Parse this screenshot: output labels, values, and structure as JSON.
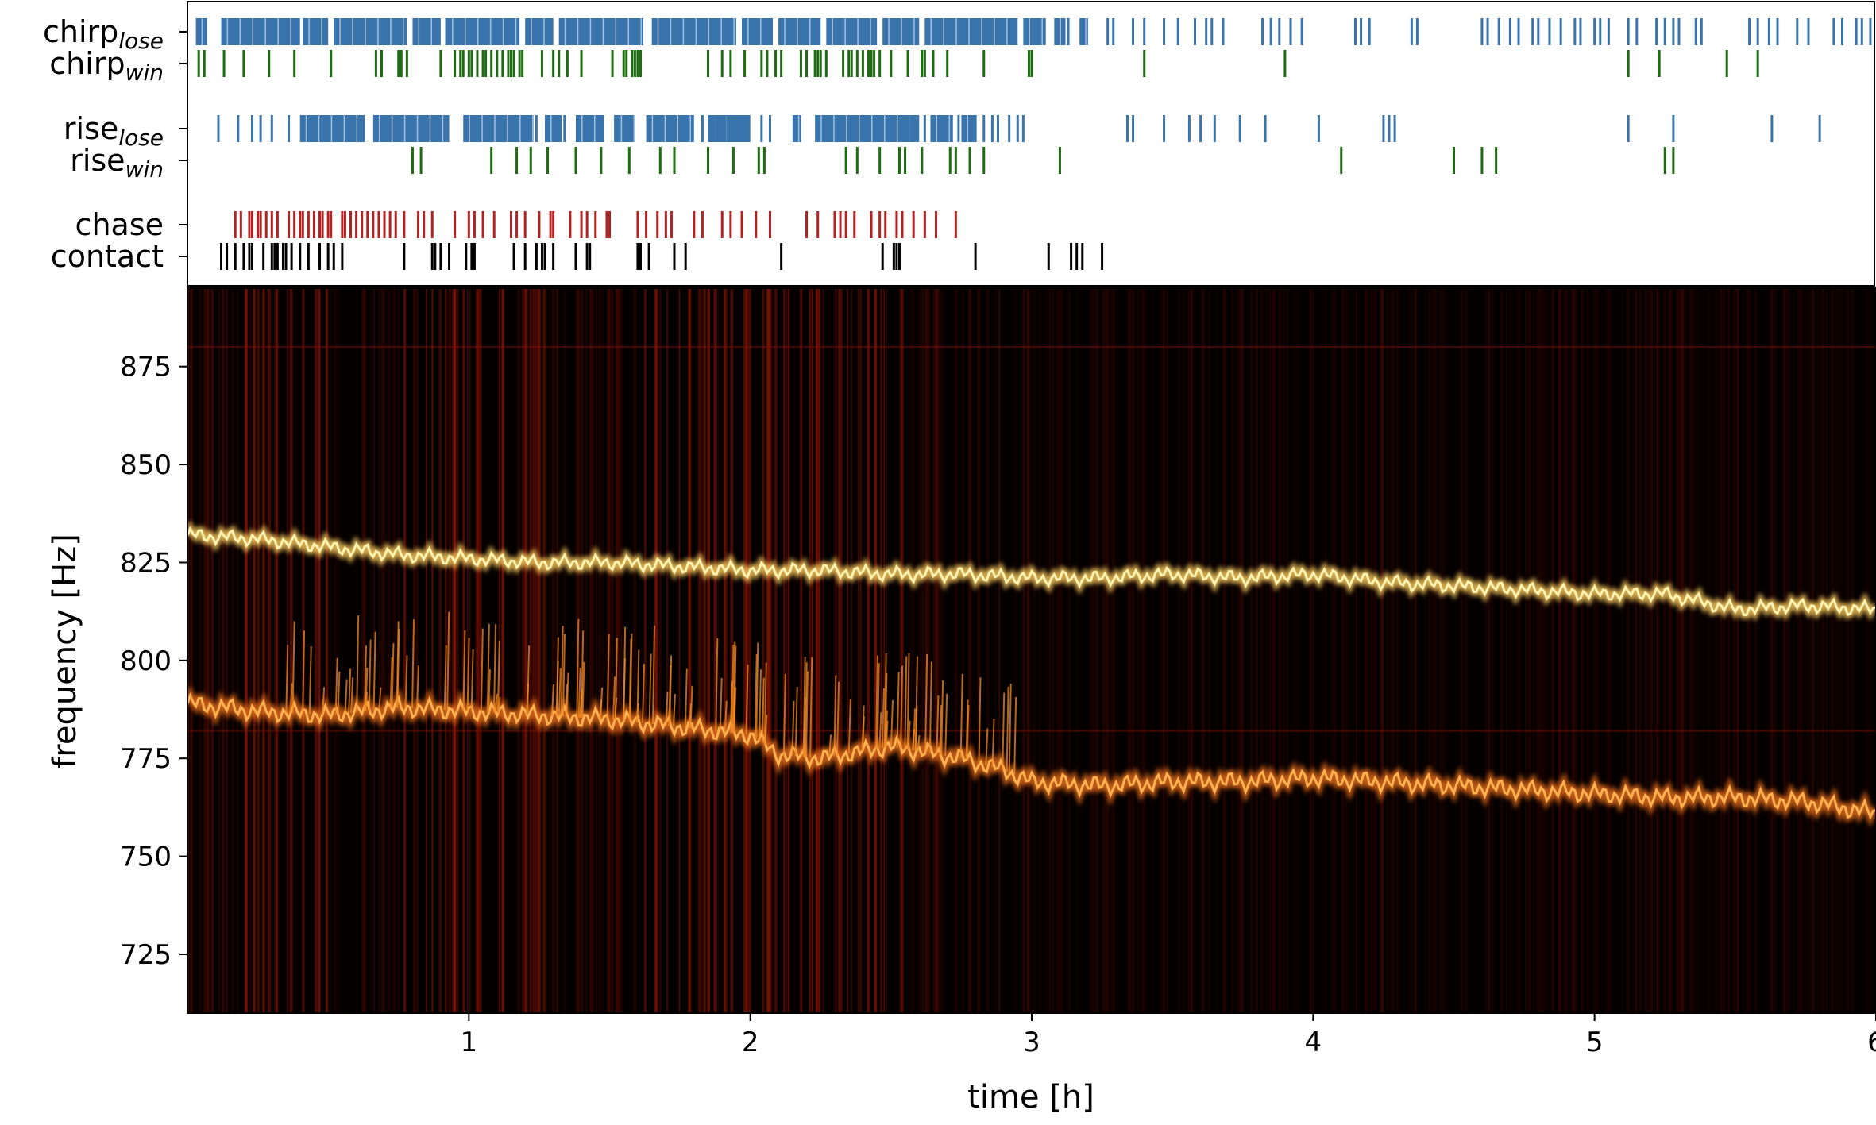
{
  "chart_data": [
    {
      "type": "event-raster",
      "rows": [
        {
          "label": "chirp",
          "sub": "lose",
          "color": "#3a74ad"
        },
        {
          "label": "chirp",
          "sub": "win",
          "color": "#1e6b12"
        },
        {
          "label": "rise",
          "sub": "lose",
          "color": "#3a74ad"
        },
        {
          "label": "rise",
          "sub": "win",
          "color": "#1e6b12"
        },
        {
          "label": "chase",
          "sub": "",
          "color": "#b22222"
        },
        {
          "label": "contact",
          "sub": "",
          "color": "#000000"
        }
      ],
      "events": {
        "chirp_lose": [
          [
            0.03,
            0.07
          ],
          [
            0.12,
            0.4
          ],
          [
            0.41,
            0.5
          ],
          [
            0.52,
            0.78
          ],
          [
            0.8,
            0.9
          ],
          [
            0.92,
            1.18
          ],
          [
            1.2,
            1.3
          ],
          [
            1.32,
            1.62
          ],
          [
            1.65,
            1.95
          ],
          [
            1.97,
            2.08
          ],
          [
            2.1,
            2.25
          ],
          [
            2.27,
            2.45
          ],
          [
            2.47,
            2.6
          ],
          [
            2.62,
            2.95
          ],
          [
            2.97,
            3.05
          ],
          [
            3.08,
            3.12
          ],
          [
            3.17,
            3.2
          ]
        ],
        "chirp_lose_ticks": [
          0.18,
          0.26,
          0.92,
          1.05,
          2.98,
          3.13,
          3.27,
          3.29,
          3.36,
          3.4,
          3.47,
          3.52,
          3.58,
          3.62,
          3.64,
          3.68,
          3.82,
          3.85,
          3.88,
          3.92,
          3.96,
          4.15,
          4.17,
          4.2,
          4.35,
          4.37,
          4.6,
          4.62,
          4.66,
          4.7,
          4.73,
          4.78,
          4.8,
          4.84,
          4.88,
          4.93,
          4.95,
          5.0,
          5.02,
          5.05,
          5.12,
          5.15,
          5.22,
          5.25,
          5.28,
          5.3,
          5.36,
          5.38,
          5.55,
          5.58,
          5.62,
          5.65,
          5.72,
          5.76,
          5.85,
          5.88,
          5.93,
          5.95,
          5.98
        ],
        "chirp_win": [
          0.04,
          0.06,
          0.13,
          0.2,
          0.29,
          0.38,
          0.51,
          0.67,
          0.69,
          0.75,
          0.76,
          0.78,
          0.9,
          0.95,
          0.97,
          0.98,
          1.0,
          1.01,
          1.03,
          1.05,
          1.06,
          1.08,
          1.1,
          1.12,
          1.14,
          1.15,
          1.16,
          1.18,
          1.19,
          1.26,
          1.3,
          1.32,
          1.35,
          1.4,
          1.51,
          1.55,
          1.56,
          1.58,
          1.59,
          1.6,
          1.61,
          1.85,
          1.9,
          1.93,
          1.98,
          2.04,
          2.06,
          2.09,
          2.11,
          2.18,
          2.2,
          2.23,
          2.24,
          2.25,
          2.27,
          2.33,
          2.35,
          2.36,
          2.38,
          2.4,
          2.42,
          2.43,
          2.44,
          2.46,
          2.5,
          2.56,
          2.61,
          2.62,
          2.65,
          2.7,
          2.83,
          2.99,
          3.0,
          3.4,
          3.9,
          5.12,
          5.23,
          5.47,
          5.58
        ],
        "rise_lose": [
          [
            0.4,
            0.63
          ],
          [
            0.66,
            0.93
          ],
          [
            0.98,
            1.23
          ],
          [
            1.27,
            1.33
          ],
          [
            1.38,
            1.48
          ],
          [
            1.52,
            1.59
          ],
          [
            1.63,
            1.8
          ],
          [
            1.85,
            2.0
          ],
          [
            2.15,
            2.18
          ],
          [
            2.23,
            2.6
          ],
          [
            2.64,
            2.72
          ],
          [
            2.75,
            2.8
          ]
        ],
        "rise_lose_ticks": [
          0.11,
          0.18,
          0.23,
          0.26,
          0.3,
          0.36,
          1.24,
          1.34,
          1.52,
          1.55,
          1.68,
          1.73,
          1.83,
          1.87,
          1.92,
          1.96,
          1.99,
          2.04,
          2.07,
          2.16,
          2.57,
          2.62,
          2.74,
          2.8,
          2.83,
          2.86,
          2.88,
          2.92,
          2.95,
          2.97,
          3.34,
          3.36,
          3.47,
          3.56,
          3.6,
          3.65,
          3.74,
          3.83,
          4.02,
          4.25,
          4.27,
          4.29,
          5.12,
          5.28,
          5.63,
          5.8
        ],
        "rise_win": [
          0.8,
          0.83,
          1.08,
          1.17,
          1.22,
          1.28,
          1.38,
          1.47,
          1.57,
          1.68,
          1.73,
          1.85,
          1.94,
          2.03,
          2.05,
          2.34,
          2.38,
          2.46,
          2.53,
          2.55,
          2.61,
          2.71,
          2.73,
          2.78,
          2.83,
          3.1,
          4.1,
          4.5,
          4.6,
          4.65,
          5.25,
          5.28
        ],
        "chase": [
          0.17,
          0.19,
          0.22,
          0.23,
          0.25,
          0.26,
          0.28,
          0.3,
          0.32,
          0.36,
          0.38,
          0.4,
          0.41,
          0.43,
          0.45,
          0.47,
          0.48,
          0.5,
          0.51,
          0.55,
          0.56,
          0.58,
          0.6,
          0.62,
          0.64,
          0.66,
          0.68,
          0.7,
          0.72,
          0.74,
          0.77,
          0.82,
          0.84,
          0.87,
          0.95,
          1.0,
          1.02,
          1.05,
          1.09,
          1.15,
          1.17,
          1.2,
          1.25,
          1.29,
          1.3,
          1.36,
          1.4,
          1.42,
          1.45,
          1.49,
          1.5,
          1.6,
          1.63,
          1.67,
          1.7,
          1.72,
          1.8,
          1.83,
          1.9,
          1.93,
          1.97,
          2.02,
          2.07,
          2.2,
          2.24,
          2.3,
          2.32,
          2.34,
          2.37,
          2.43,
          2.46,
          2.48,
          2.52,
          2.54,
          2.58,
          2.62,
          2.66,
          2.73
        ],
        "contact": [
          0.12,
          0.14,
          0.17,
          0.2,
          0.22,
          0.23,
          0.27,
          0.3,
          0.31,
          0.32,
          0.34,
          0.35,
          0.37,
          0.4,
          0.43,
          0.47,
          0.5,
          0.52,
          0.55,
          0.77,
          0.87,
          0.88,
          0.9,
          0.93,
          0.99,
          1.01,
          1.02,
          1.16,
          1.2,
          1.24,
          1.26,
          1.27,
          1.3,
          1.38,
          1.42,
          1.43,
          1.6,
          1.61,
          1.64,
          1.73,
          1.77,
          2.11,
          2.47,
          2.51,
          2.52,
          2.53,
          2.8,
          3.06,
          3.14,
          3.16,
          3.18,
          3.25
        ]
      }
    },
    {
      "type": "spectrogram",
      "xlabel": "time [h]",
      "ylabel": "frequency [Hz]",
      "xlim": [
        0,
        6
      ],
      "ylim": [
        710,
        895
      ],
      "x_ticks": [
        1,
        2,
        3,
        4,
        5,
        6
      ],
      "y_ticks": [
        725,
        750,
        775,
        800,
        825,
        850,
        875
      ],
      "colormap": "afmhot",
      "series": [
        {
          "x": [
            0,
            0.25,
            0.5,
            0.75,
            1.0,
            1.25,
            1.5,
            1.75,
            2.0,
            2.25,
            2.5,
            2.75,
            3.0,
            3.25,
            3.5,
            3.75,
            4.0,
            4.25,
            4.5,
            4.75,
            5.0,
            5.25,
            5.5,
            5.75,
            6.0
          ],
          "y": [
            832,
            831,
            829,
            827,
            826,
            825,
            825,
            824,
            823,
            823,
            822,
            822,
            821,
            821,
            822,
            821,
            822,
            820,
            819,
            818,
            817,
            817,
            813,
            814,
            813
          ]
        },
        {
          "x": [
            0,
            0.25,
            0.5,
            0.75,
            1.0,
            1.25,
            1.5,
            1.75,
            2.0,
            2.1,
            2.25,
            2.5,
            2.75,
            2.9,
            3.0,
            3.25,
            3.5,
            3.75,
            4.0,
            4.25,
            4.5,
            4.75,
            5.0,
            5.25,
            5.5,
            5.75,
            6.0
          ],
          "y": [
            789,
            787,
            786,
            788,
            787,
            786,
            785,
            783,
            781,
            776,
            775,
            778,
            775,
            772,
            769,
            768,
            769,
            769,
            770,
            769,
            768,
            767,
            766,
            765,
            765,
            764,
            761
          ]
        }
      ]
    }
  ]
}
